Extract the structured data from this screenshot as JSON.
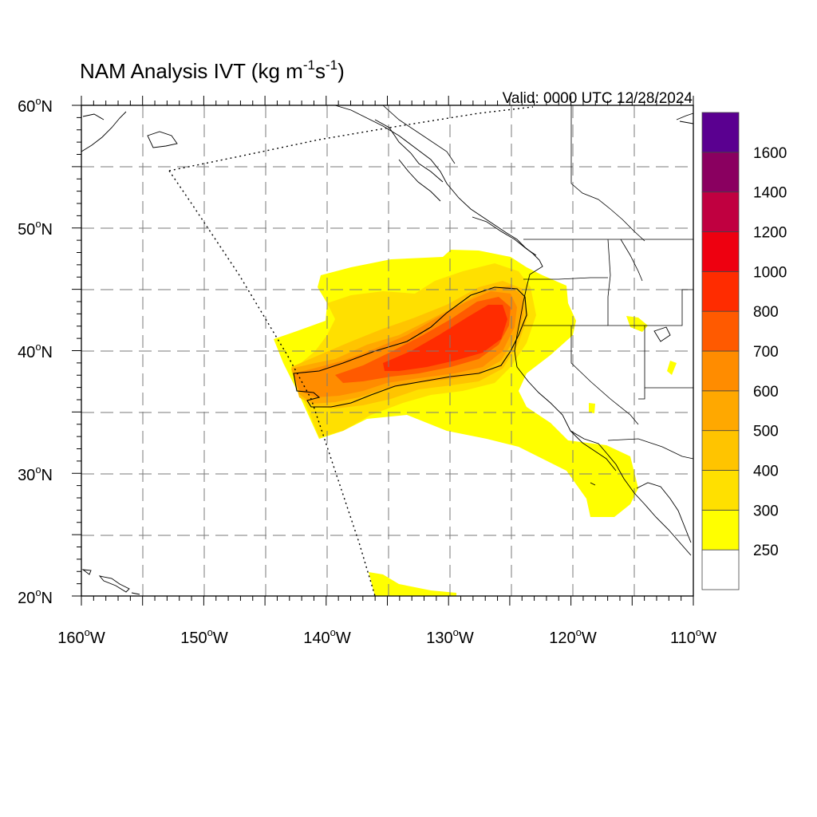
{
  "title": {
    "main": "NAM Analysis IVT (kg m",
    "sup1": "-1",
    "mid": "s",
    "sup2": "-1",
    "end": ")"
  },
  "valid_label": "Valid: 0000 UTC 12/28/2024",
  "lat_labels": [
    {
      "lat": 60,
      "num": "60",
      "deg": "o",
      "hem": "N"
    },
    {
      "lat": 50,
      "num": "50",
      "deg": "o",
      "hem": "N"
    },
    {
      "lat": 40,
      "num": "40",
      "deg": "o",
      "hem": "N"
    },
    {
      "lat": 30,
      "num": "30",
      "deg": "o",
      "hem": "N"
    },
    {
      "lat": 20,
      "num": "20",
      "deg": "o",
      "hem": "N"
    }
  ],
  "lon_labels": [
    {
      "lon": -160,
      "num": "160",
      "deg": "o",
      "hem": "W"
    },
    {
      "lon": -150,
      "num": "150",
      "deg": "o",
      "hem": "W"
    },
    {
      "lon": -140,
      "num": "140",
      "deg": "o",
      "hem": "W"
    },
    {
      "lon": -130,
      "num": "130",
      "deg": "o",
      "hem": "W"
    },
    {
      "lon": -120,
      "num": "120",
      "deg": "o",
      "hem": "W"
    },
    {
      "lon": -110,
      "num": "110",
      "deg": "o",
      "hem": "W"
    }
  ],
  "extent": {
    "lon_min": -160,
    "lon_max": -110,
    "lat_min": 20,
    "lat_max": 60
  },
  "colorbar": {
    "levels": [
      "250",
      "300",
      "400",
      "500",
      "600",
      "700",
      "800",
      "1000",
      "1200",
      "1400",
      "1600"
    ],
    "colors": [
      "#ffffff",
      "#ffff00",
      "#ffe000",
      "#ffc400",
      "#ffa800",
      "#ff8c00",
      "#ff5a00",
      "#ff2c00",
      "#ee0010",
      "#c00040",
      "#8a0060",
      "#5a0090"
    ]
  },
  "colors": {
    "ivt_250": "#ffff00",
    "ivt_300": "#ffe000",
    "ivt_400": "#ffc400",
    "ivt_500": "#ffa800",
    "ivt_600": "#ff8c00",
    "ivt_700": "#ff5a00",
    "ivt_800": "#ff2c00"
  }
}
